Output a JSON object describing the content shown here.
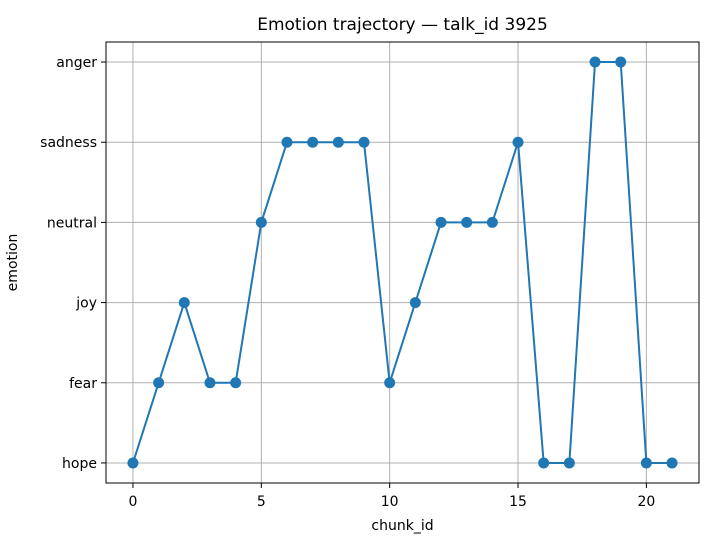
{
  "chart_data": {
    "type": "line",
    "title": "Emotion trajectory — talk_id 3925",
    "xlabel": "chunk_id",
    "ylabel": "emotion",
    "x_ticks": [
      0,
      5,
      10,
      15,
      20
    ],
    "x_tick_labels": [
      "0",
      "5",
      "10",
      "15",
      "20"
    ],
    "categories_y": [
      "hope",
      "fear",
      "joy",
      "neutral",
      "sadness",
      "anger"
    ],
    "xlim": [
      -1.05,
      22.05
    ],
    "ylim": [
      -0.25,
      5.25
    ],
    "grid": true,
    "series": [
      {
        "x": [
          0,
          1,
          2,
          3,
          4,
          5,
          6,
          7,
          8,
          9,
          10,
          11,
          12,
          13,
          14,
          15,
          16,
          17,
          18,
          19,
          20,
          21
        ],
        "values": [
          "hope",
          "fear",
          "joy",
          "fear",
          "fear",
          "neutral",
          "sadness",
          "sadness",
          "sadness",
          "sadness",
          "fear",
          "joy",
          "neutral",
          "neutral",
          "neutral",
          "sadness",
          "hope",
          "hope",
          "anger",
          "anger",
          "hope",
          "hope"
        ],
        "color": "#1f77b4",
        "marker": "circle"
      }
    ]
  }
}
